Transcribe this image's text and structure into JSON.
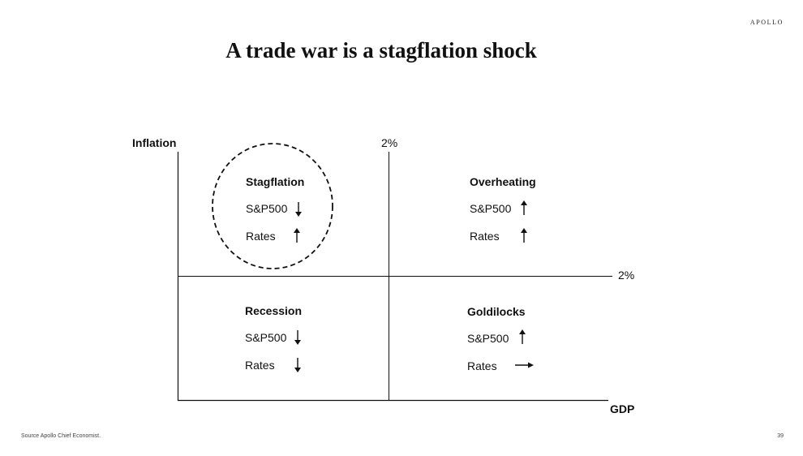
{
  "brand": "APOLLO",
  "title": "A trade war is a stagflation shock",
  "axes": {
    "y_label": "Inflation",
    "x_label": "GDP",
    "y_threshold": "2%",
    "x_threshold": "2%"
  },
  "quadrants": {
    "stagflation": {
      "name": "Stagflation",
      "sp500_label": "S&P500",
      "sp500_direction": "down",
      "rates_label": "Rates",
      "rates_direction": "up",
      "highlighted": true
    },
    "overheating": {
      "name": "Overheating",
      "sp500_label": "S&P500",
      "sp500_direction": "up",
      "rates_label": "Rates",
      "rates_direction": "up"
    },
    "recession": {
      "name": "Recession",
      "sp500_label": "S&P500",
      "sp500_direction": "down",
      "rates_label": "Rates",
      "rates_direction": "down"
    },
    "goldilocks": {
      "name": "Goldilocks",
      "sp500_label": "S&P500",
      "sp500_direction": "up",
      "rates_label": "Rates",
      "rates_direction": "flat"
    }
  },
  "footer": {
    "source": "Source Apollo Chief Economist.",
    "page_number": "39"
  }
}
